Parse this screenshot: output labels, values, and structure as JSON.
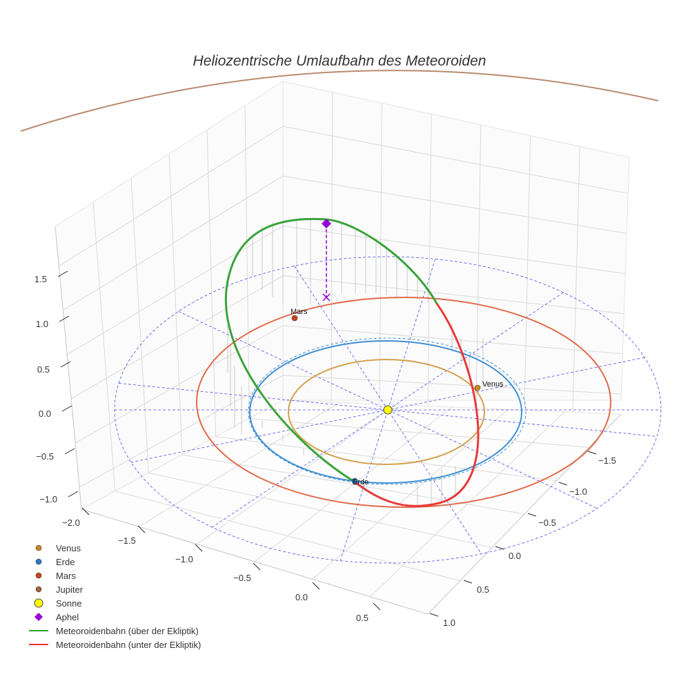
{
  "chart_data": {
    "type": "3d-orbit",
    "title": "Heliozentrische Umlaufbahn des Meteoroiden",
    "axes": {
      "x_ticks": [
        "−2.0",
        "−1.5",
        "−1.0",
        "−0.5",
        "0.0",
        "0.5"
      ],
      "y_ticks": [
        "−1.5",
        "−1.0",
        "−0.5",
        "0.0",
        "0.5",
        "1.0"
      ],
      "z_ticks": [
        "−1.0",
        "−0.5",
        "0.0",
        "0.5",
        "1.0",
        "1.5"
      ],
      "z_values": [
        -1.0,
        -0.5,
        0.0,
        0.5,
        1.0,
        1.5
      ]
    },
    "planet_labels": {
      "venus": "Venus",
      "erde": "Erde",
      "mars": "Mars"
    },
    "orbits": [
      {
        "name": "Venus",
        "radius_au": 0.72,
        "color": "#d4a04c"
      },
      {
        "name": "Erde",
        "radius_au": 1.0,
        "color": "#3f8fd2"
      },
      {
        "name": "Mars",
        "radius_au": 1.52,
        "color": "#e06a4a"
      },
      {
        "name": "Jupiter",
        "radius_au": 5.2,
        "color": "#b98a6e"
      }
    ],
    "meteoroid": {
      "above_ecliptic_color": "#3aa33a",
      "below_ecliptic_color": "#e83a3a",
      "aphel_color": "#9400d3"
    },
    "legend": [
      {
        "label": "Venus",
        "marker": "dot",
        "color": "#c98a22"
      },
      {
        "label": "Erde",
        "marker": "dot",
        "color": "#2b7bbf"
      },
      {
        "label": "Mars",
        "marker": "dot",
        "color": "#c8431e"
      },
      {
        "label": "Jupiter",
        "marker": "dot",
        "color": "#a8633a"
      },
      {
        "label": "Sonne",
        "marker": "big-dot",
        "color": "#ffff00"
      },
      {
        "label": "Aphel",
        "marker": "diamond",
        "color": "#9400d3"
      },
      {
        "label": "Meteoroidenbahn (über der Ekliptik)",
        "marker": "line",
        "color": "#2ca02c"
      },
      {
        "label": "Meteoroidenbahn (unter der Ekliptik)",
        "marker": "line",
        "color": "#e8302c"
      }
    ]
  }
}
